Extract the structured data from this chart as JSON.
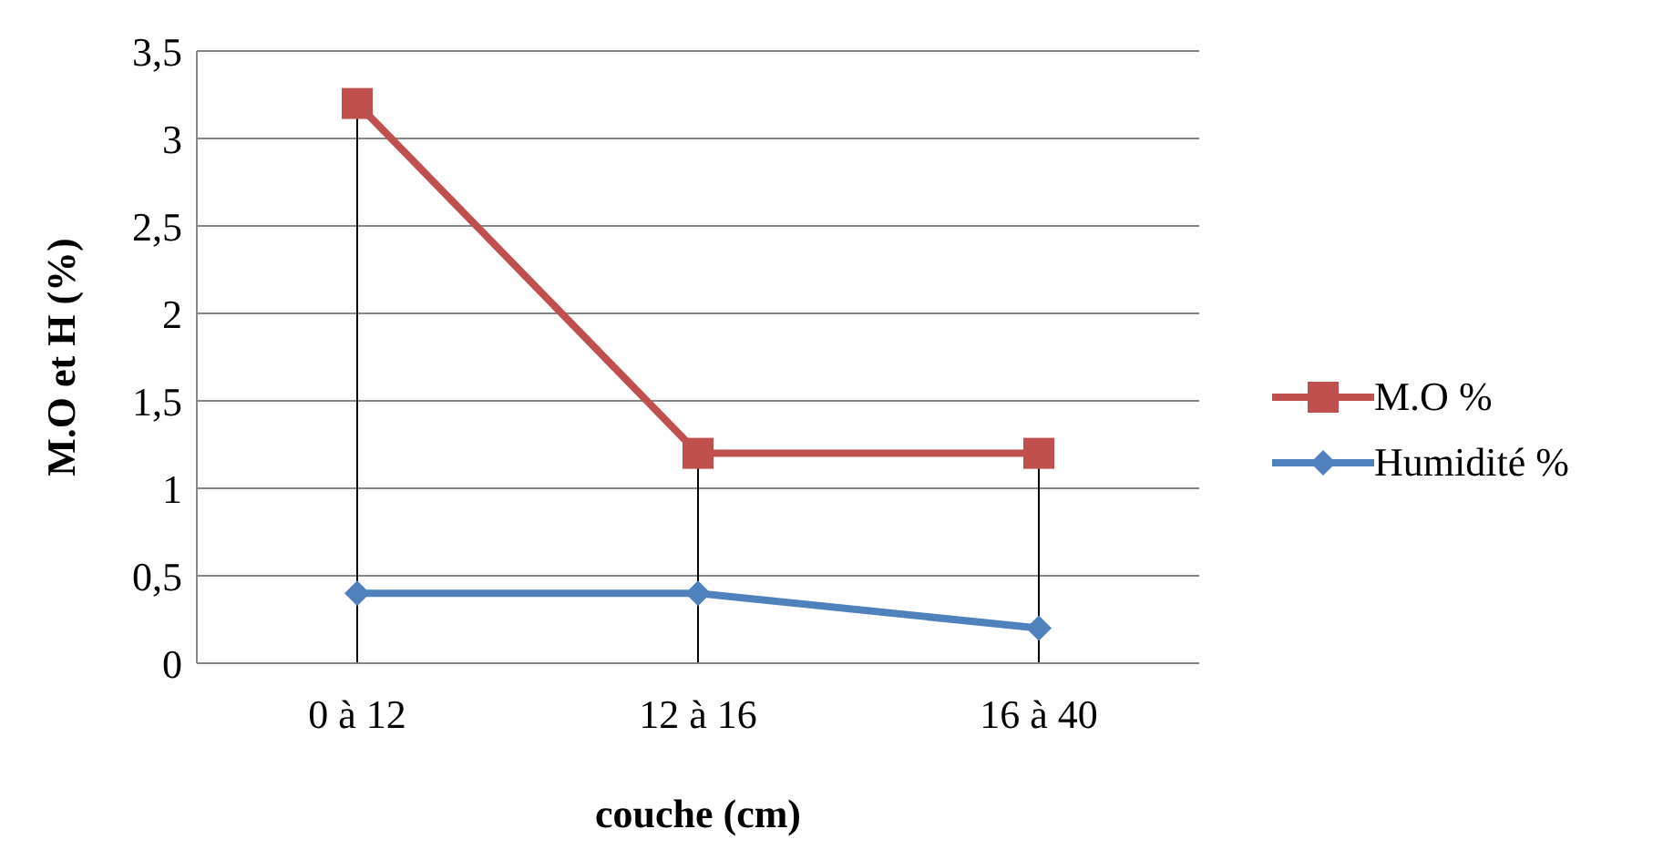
{
  "chart_data": {
    "type": "line",
    "xlabel": "couche (cm)",
    "ylabel": "M.O et H (%)",
    "categories": [
      "0 à 12",
      "12 à 16",
      "16 à 40"
    ],
    "series": [
      {
        "name": "M.O %",
        "color": "#c0504d",
        "values": [
          3.2,
          1.2,
          1.2
        ],
        "marker": "square"
      },
      {
        "name": "Humidité %",
        "color": "#4f81bd",
        "values": [
          0.4,
          0.4,
          0.2
        ],
        "marker": "diamond"
      }
    ],
    "ylim": [
      0,
      3.5
    ],
    "yticks": [
      0,
      {
        "value": 0.5,
        "label": "0,5"
      },
      1,
      {
        "value": 1.5,
        "label": "1,5"
      },
      2,
      {
        "value": 2.5,
        "label": "2,5"
      },
      3,
      {
        "value": 3.5,
        "label": "3,5"
      }
    ],
    "grid": "y",
    "legend": "right",
    "ref_lines": [
      {
        "axis": "x",
        "value": "0 à 12",
        "color": "#000000"
      },
      {
        "axis": "x",
        "value": "12 à 16",
        "color": "#000000"
      },
      {
        "axis": "x",
        "value": "16 à 40",
        "color": "#000000"
      }
    ]
  }
}
